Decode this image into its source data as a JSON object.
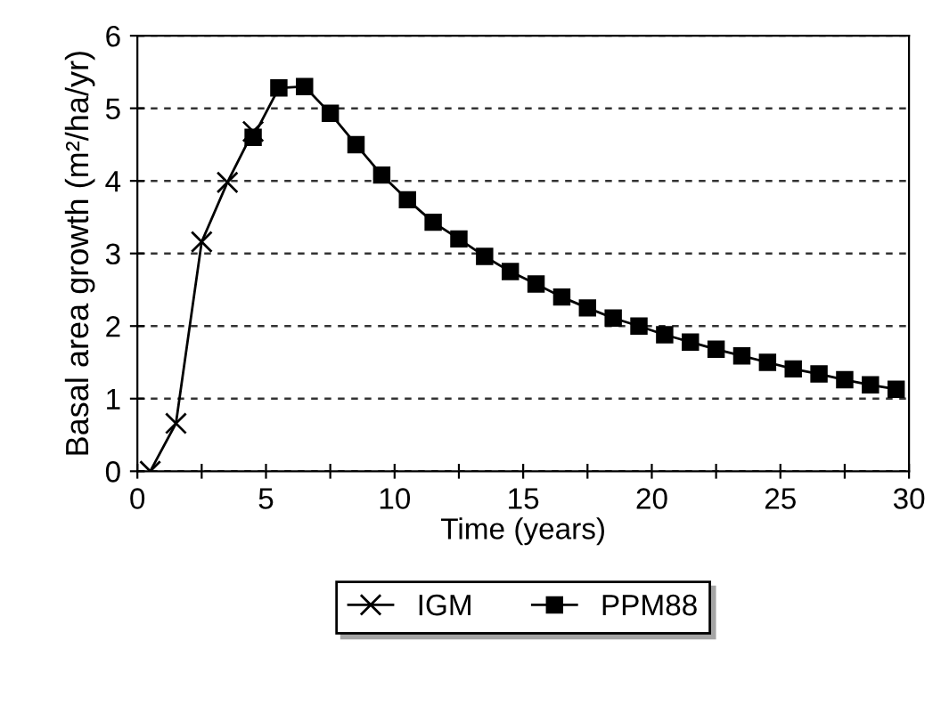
{
  "chart_data": {
    "type": "line",
    "xlabel": "Time (years)",
    "ylabel": "Basal area growth (m²/ha/yr)",
    "xlim": [
      0,
      30
    ],
    "ylim": [
      0,
      6
    ],
    "xticks": [
      0,
      {
        "value": 2.5,
        "label": null
      },
      5,
      {
        "value": 7.5,
        "label": null
      },
      10,
      {
        "value": 12.5,
        "label": null
      },
      15,
      {
        "value": 17.5,
        "label": null
      },
      20,
      {
        "value": 22.5,
        "label": null
      },
      25,
      {
        "value": 27.5,
        "label": null
      },
      30
    ],
    "yticks": [
      0,
      1,
      2,
      3,
      4,
      5,
      6
    ],
    "grid": "y",
    "legend": "bottom",
    "line_style": "solid",
    "series": [
      {
        "name": "IGM",
        "color": "#000000",
        "marker": "cross",
        "x": [
          0.5,
          1.5,
          2.5,
          3.5,
          4.5
        ],
        "values": [
          0,
          0.66,
          3.16,
          3.98,
          4.68
        ]
      },
      {
        "name": "PPM88",
        "color": "#000000",
        "marker": "square",
        "x": [
          4.5,
          5.5,
          6.5,
          7.5,
          8.5,
          9.5,
          10.5,
          11.5,
          12.5,
          13.5,
          14.5,
          15.5,
          16.5,
          17.5,
          18.5,
          19.5,
          20.5,
          21.5,
          22.5,
          23.5,
          24.5,
          25.5,
          26.5,
          27.5,
          28.5,
          29.5
        ],
        "values": [
          4.6,
          5.28,
          5.3,
          4.93,
          4.5,
          4.08,
          3.74,
          3.43,
          3.2,
          2.96,
          2.75,
          2.58,
          2.4,
          2.25,
          2.11,
          2.0,
          1.88,
          1.78,
          1.68,
          1.59,
          1.5,
          1.41,
          1.34,
          1.26,
          1.19,
          1.13
        ]
      }
    ]
  }
}
